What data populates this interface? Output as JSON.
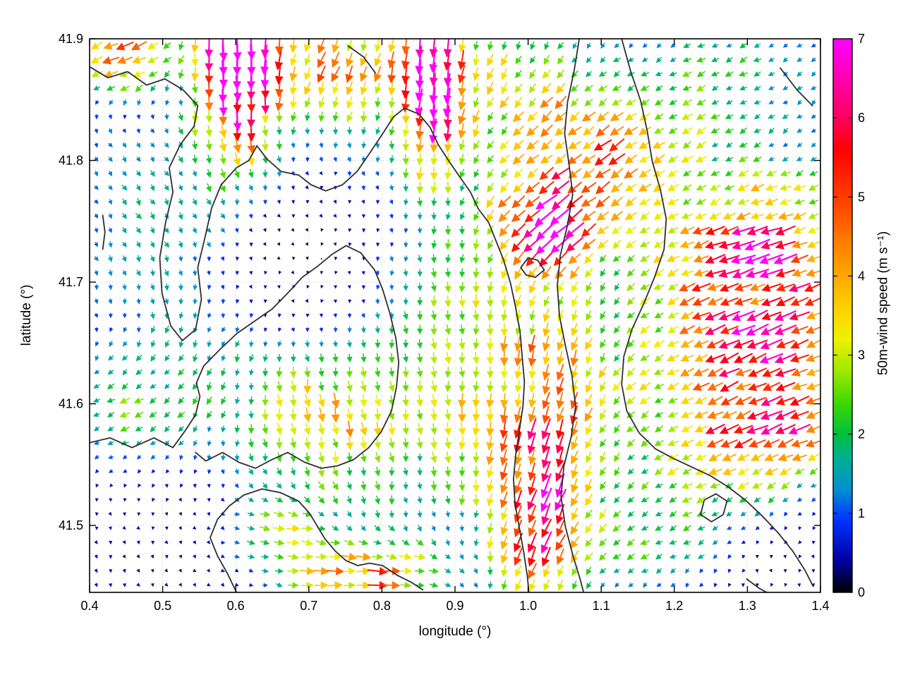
{
  "figure": {
    "background": "#ffffff",
    "axes": {
      "xlabel": "longitude (°)",
      "ylabel": "latitude (°)",
      "xtick_labels": [
        "0.4",
        "0.5",
        "0.6",
        "0.7",
        "0.8",
        "0.9",
        "1.0",
        "1.1",
        "1.2",
        "1.3",
        "1.4"
      ],
      "ytick_labels": [
        "41.5",
        "41.6",
        "41.7",
        "41.8",
        "41.9"
      ]
    },
    "colorbar": {
      "label": "50m-wind speed (m s⁻¹)",
      "tick_labels": [
        "0",
        "1",
        "2",
        "3",
        "4",
        "5",
        "6",
        "7"
      ]
    }
  },
  "chart_data": {
    "type": "quiver",
    "title": "",
    "xlabel": "longitude (°)",
    "ylabel": "latitude (°)",
    "xlim": [
      0.4,
      1.4
    ],
    "ylim": [
      41.445,
      41.9
    ],
    "xticks": [
      0.4,
      0.5,
      0.6,
      0.7,
      0.8,
      0.9,
      1.0,
      1.1,
      1.2,
      1.3,
      1.4
    ],
    "yticks": [
      41.5,
      41.6,
      41.7,
      41.8,
      41.9
    ],
    "grid_on": true,
    "grid_color": "#c9c9c9",
    "contour_color": "#2e2e2e",
    "colorbar": {
      "label": "50m-wind speed (m s⁻¹)",
      "min": 0,
      "max": 7,
      "ticks": [
        0,
        1,
        2,
        3,
        4,
        5,
        6,
        7
      ],
      "colormap": [
        [
          0.0,
          "#000000"
        ],
        [
          0.4,
          "#0000a0"
        ],
        [
          0.9,
          "#0030ff"
        ],
        [
          1.3,
          "#0090d0"
        ],
        [
          1.7,
          "#00b090"
        ],
        [
          2.0,
          "#00c040"
        ],
        [
          2.4,
          "#40d800"
        ],
        [
          2.8,
          "#a0e800"
        ],
        [
          3.2,
          "#f0f000"
        ],
        [
          3.6,
          "#ffd000"
        ],
        [
          4.0,
          "#ffa800"
        ],
        [
          4.4,
          "#ff8000"
        ],
        [
          4.8,
          "#ff5000"
        ],
        [
          5.2,
          "#ff2800"
        ],
        [
          5.6,
          "#ff0000"
        ],
        [
          6.0,
          "#ff0060"
        ],
        [
          6.5,
          "#ff00b0"
        ],
        [
          7.0,
          "#ff00ff"
        ]
      ]
    },
    "grid": {
      "nx": 52,
      "ny": 39
    },
    "arrow_scale": {
      "base_len": 3.0,
      "len_per_ms": 4.8,
      "max_len": 44
    },
    "field": {
      "base": {
        "u": 0.25,
        "v": -0.55
      },
      "features": [
        {
          "cx": 0.605,
          "cy": 41.885,
          "sx": 0.038,
          "sy": 0.055,
          "u": 0.3,
          "v": -7.6
        },
        {
          "cx": 0.868,
          "cy": 41.868,
          "sx": 0.032,
          "sy": 0.05,
          "u": -0.3,
          "v": -6.8
        },
        {
          "cx": 0.445,
          "cy": 41.885,
          "sx": 0.05,
          "sy": 0.022,
          "u": -4.6,
          "v": -1.2
        },
        {
          "cx": 0.73,
          "cy": 41.872,
          "sx": 0.075,
          "sy": 0.03,
          "u": -1.8,
          "v": -3.2
        },
        {
          "cx": 1.33,
          "cy": 41.73,
          "sx": 0.09,
          "sy": 0.042,
          "u": -5.0,
          "v": -1.0
        },
        {
          "cx": 1.27,
          "cy": 41.645,
          "sx": 0.1,
          "sy": 0.05,
          "u": -3.8,
          "v": -1.2
        },
        {
          "cx": 1.08,
          "cy": 41.8,
          "sx": 0.1,
          "sy": 0.05,
          "u": -3.4,
          "v": -1.6
        },
        {
          "cx": 1.02,
          "cy": 41.74,
          "sx": 0.045,
          "sy": 0.03,
          "u": -3.8,
          "v": -2.0
        },
        {
          "cx": 0.87,
          "cy": 41.63,
          "sx": 0.1,
          "sy": 0.1,
          "u": 0.0,
          "v": -2.2
        },
        {
          "cx": 1.01,
          "cy": 41.5,
          "sx": 0.045,
          "sy": 0.055,
          "u": -1.5,
          "v": -3.0
        },
        {
          "cx": 1.03,
          "cy": 41.6,
          "sx": 0.06,
          "sy": 0.09,
          "u": -1.0,
          "v": -2.8
        },
        {
          "cx": 0.78,
          "cy": 41.46,
          "sx": 0.08,
          "sy": 0.02,
          "u": 4.2,
          "v": 0.8
        },
        {
          "cx": 0.44,
          "cy": 41.59,
          "sx": 0.06,
          "sy": 0.032,
          "u": -2.0,
          "v": -0.2
        },
        {
          "cx": 1.25,
          "cy": 41.555,
          "sx": 0.1,
          "sy": 0.04,
          "u": -2.6,
          "v": -0.8
        },
        {
          "cx": 0.55,
          "cy": 41.63,
          "sx": 0.09,
          "sy": 0.05,
          "u": -1.1,
          "v": -0.8
        },
        {
          "cx": 0.97,
          "cy": 41.87,
          "sx": 0.06,
          "sy": 0.04,
          "u": -0.9,
          "v": -1.5
        },
        {
          "cx": 1.27,
          "cy": 41.87,
          "sx": 0.11,
          "sy": 0.045,
          "u": -1.9,
          "v": -0.3
        },
        {
          "cx": 0.5,
          "cy": 41.75,
          "sx": 0.08,
          "sy": 0.07,
          "u": 0.6,
          "v": -0.7
        },
        {
          "cx": 0.7,
          "cy": 41.585,
          "sx": 0.07,
          "sy": 0.04,
          "u": 0.6,
          "v": -2.4
        },
        {
          "cx": 0.66,
          "cy": 41.5,
          "sx": 0.05,
          "sy": 0.022,
          "u": 2.4,
          "v": 0.5
        },
        {
          "cx": 1.15,
          "cy": 41.48,
          "sx": 0.09,
          "sy": 0.028,
          "u": -1.8,
          "v": -0.3
        },
        {
          "cx": 1.36,
          "cy": 41.6,
          "sx": 0.05,
          "sy": 0.04,
          "u": -3.2,
          "v": -0.8
        }
      ],
      "dampers": [
        {
          "cx": 0.71,
          "cy": 41.715,
          "sx": 0.09,
          "sy": 0.048,
          "k": 0.85
        },
        {
          "cx": 0.52,
          "cy": 41.49,
          "sx": 0.1,
          "sy": 0.05,
          "k": 0.35
        },
        {
          "cx": 1.35,
          "cy": 41.47,
          "sx": 0.07,
          "sy": 0.035,
          "k": 0.5
        }
      ]
    },
    "contours": [
      [
        [
          0.4,
          41.877
        ],
        [
          0.425,
          41.868
        ],
        [
          0.452,
          41.873
        ],
        [
          0.478,
          41.862
        ],
        [
          0.503,
          41.867
        ],
        [
          0.528,
          41.858
        ],
        [
          0.548,
          41.845
        ],
        [
          0.543,
          41.828
        ],
        [
          0.524,
          41.813
        ],
        [
          0.509,
          41.794
        ],
        [
          0.514,
          41.774
        ],
        [
          0.504,
          41.749
        ],
        [
          0.496,
          41.72
        ],
        [
          0.499,
          41.691
        ],
        [
          0.511,
          41.664
        ],
        [
          0.527,
          41.652
        ],
        [
          0.545,
          41.661
        ],
        [
          0.553,
          41.686
        ],
        [
          0.548,
          41.712
        ],
        [
          0.558,
          41.737
        ],
        [
          0.567,
          41.761
        ],
        [
          0.58,
          41.78
        ],
        [
          0.601,
          41.794
        ],
        [
          0.618,
          41.8
        ],
        [
          0.629,
          41.812
        ],
        [
          0.643,
          41.801
        ],
        [
          0.662,
          41.791
        ],
        [
          0.686,
          41.788
        ],
        [
          0.703,
          41.78
        ],
        [
          0.723,
          41.775
        ],
        [
          0.746,
          41.78
        ],
        [
          0.766,
          41.791
        ],
        [
          0.781,
          41.804
        ],
        [
          0.8,
          41.821
        ],
        [
          0.816,
          41.836
        ],
        [
          0.831,
          41.843
        ],
        [
          0.851,
          41.838
        ],
        [
          0.866,
          41.827
        ],
        [
          0.877,
          41.813
        ],
        [
          0.891,
          41.8
        ],
        [
          0.907,
          41.786
        ],
        [
          0.921,
          41.774
        ],
        [
          0.932,
          41.76
        ],
        [
          0.946,
          41.749
        ],
        [
          0.956,
          41.734
        ],
        [
          0.966,
          41.719
        ],
        [
          0.976,
          41.699
        ],
        [
          0.983,
          41.679
        ],
        [
          0.989,
          41.659
        ],
        [
          0.992,
          41.638
        ],
        [
          0.995,
          41.618
        ],
        [
          0.993,
          41.598
        ],
        [
          0.988,
          41.578
        ],
        [
          0.983,
          41.558
        ],
        [
          0.98,
          41.538
        ],
        [
          0.982,
          41.518
        ],
        [
          0.988,
          41.498
        ],
        [
          0.994,
          41.478
        ],
        [
          0.999,
          41.458
        ],
        [
          1.001,
          41.445
        ]
      ],
      [
        [
          0.4,
          41.568
        ],
        [
          0.428,
          41.572
        ],
        [
          0.458,
          41.564
        ],
        [
          0.488,
          41.572
        ],
        [
          0.514,
          41.564
        ],
        [
          0.531,
          41.578
        ],
        [
          0.545,
          41.591
        ],
        [
          0.551,
          41.606
        ],
        [
          0.546,
          41.617
        ],
        [
          0.556,
          41.631
        ],
        [
          0.579,
          41.645
        ],
        [
          0.602,
          41.658
        ],
        [
          0.626,
          41.668
        ],
        [
          0.65,
          41.678
        ],
        [
          0.671,
          41.691
        ],
        [
          0.691,
          41.704
        ],
        [
          0.712,
          41.713
        ],
        [
          0.732,
          41.723
        ],
        [
          0.751,
          41.73
        ],
        [
          0.771,
          41.724
        ],
        [
          0.79,
          41.71
        ],
        [
          0.801,
          41.694
        ],
        [
          0.811,
          41.674
        ],
        [
          0.819,
          41.654
        ],
        [
          0.823,
          41.634
        ],
        [
          0.82,
          41.614
        ],
        [
          0.813,
          41.594
        ],
        [
          0.799,
          41.577
        ],
        [
          0.782,
          41.564
        ],
        [
          0.761,
          41.554
        ],
        [
          0.739,
          41.549
        ],
        [
          0.717,
          41.547
        ],
        [
          0.694,
          41.552
        ],
        [
          0.671,
          41.56
        ],
        [
          0.649,
          41.554
        ],
        [
          0.627,
          41.547
        ],
        [
          0.604,
          41.552
        ],
        [
          0.582,
          41.56
        ],
        [
          0.559,
          41.553
        ],
        [
          0.545,
          41.56
        ]
      ],
      [
        [
          0.601,
          41.445
        ],
        [
          0.589,
          41.46
        ],
        [
          0.575,
          41.475
        ],
        [
          0.565,
          41.49
        ],
        [
          0.575,
          41.505
        ],
        [
          0.591,
          41.516
        ],
        [
          0.611,
          41.525
        ],
        [
          0.636,
          41.53
        ],
        [
          0.661,
          41.527
        ],
        [
          0.686,
          41.52
        ],
        [
          0.701,
          41.51
        ],
        [
          0.712,
          41.499
        ],
        [
          0.722,
          41.489
        ],
        [
          0.736,
          41.479
        ],
        [
          0.751,
          41.471
        ],
        [
          0.767,
          41.467
        ],
        [
          0.783,
          41.469
        ],
        [
          0.801,
          41.467
        ],
        [
          0.821,
          41.459
        ],
        [
          0.841,
          41.453
        ],
        [
          0.856,
          41.447
        ]
      ],
      [
        [
          1.07,
          41.9
        ],
        [
          1.063,
          41.874
        ],
        [
          1.054,
          41.848
        ],
        [
          1.05,
          41.822
        ],
        [
          1.056,
          41.797
        ],
        [
          1.061,
          41.772
        ],
        [
          1.054,
          41.747
        ],
        [
          1.044,
          41.722
        ],
        [
          1.04,
          41.697
        ],
        [
          1.043,
          41.672
        ],
        [
          1.051,
          41.648
        ],
        [
          1.06,
          41.623
        ],
        [
          1.065,
          41.598
        ],
        [
          1.059,
          41.573
        ],
        [
          1.049,
          41.549
        ],
        [
          1.045,
          41.524
        ],
        [
          1.051,
          41.499
        ],
        [
          1.061,
          41.476
        ],
        [
          1.071,
          41.456
        ],
        [
          1.076,
          41.445
        ]
      ],
      [
        [
          1.128,
          41.9
        ],
        [
          1.14,
          41.874
        ],
        [
          1.154,
          41.849
        ],
        [
          1.163,
          41.824
        ],
        [
          1.17,
          41.799
        ],
        [
          1.181,
          41.776
        ],
        [
          1.189,
          41.752
        ],
        [
          1.186,
          41.727
        ],
        [
          1.173,
          41.704
        ],
        [
          1.158,
          41.682
        ],
        [
          1.142,
          41.661
        ],
        [
          1.131,
          41.639
        ],
        [
          1.128,
          41.616
        ],
        [
          1.135,
          41.594
        ],
        [
          1.152,
          41.576
        ],
        [
          1.174,
          41.563
        ],
        [
          1.199,
          41.555
        ],
        [
          1.224,
          41.548
        ],
        [
          1.249,
          41.541
        ],
        [
          1.273,
          41.532
        ],
        [
          1.297,
          41.521
        ],
        [
          1.32,
          41.508
        ],
        [
          1.342,
          41.494
        ],
        [
          1.362,
          41.479
        ],
        [
          1.379,
          41.463
        ],
        [
          1.39,
          41.45
        ]
      ],
      [
        [
          0.99,
          41.712
        ],
        [
          1.0,
          41.72
        ],
        [
          1.013,
          41.718
        ],
        [
          1.022,
          41.71
        ],
        [
          1.01,
          41.704
        ],
        [
          0.997,
          41.706
        ],
        [
          0.99,
          41.712
        ]
      ],
      [
        [
          1.236,
          41.509
        ],
        [
          1.251,
          41.503
        ],
        [
          1.267,
          41.509
        ],
        [
          1.272,
          41.52
        ],
        [
          1.257,
          41.526
        ],
        [
          1.241,
          41.521
        ],
        [
          1.236,
          41.509
        ]
      ],
      [
        [
          1.345,
          41.876
        ],
        [
          1.368,
          41.858
        ],
        [
          1.389,
          41.845
        ]
      ],
      [
        [
          0.418,
          41.727
        ],
        [
          0.421,
          41.741
        ],
        [
          0.418,
          41.755
        ]
      ],
      [
        [
          0.754,
          41.894
        ],
        [
          0.775,
          41.885
        ],
        [
          0.791,
          41.872
        ]
      ],
      [
        [
          1.299,
          41.456
        ],
        [
          1.317,
          41.448
        ],
        [
          1.333,
          41.443
        ]
      ]
    ]
  }
}
